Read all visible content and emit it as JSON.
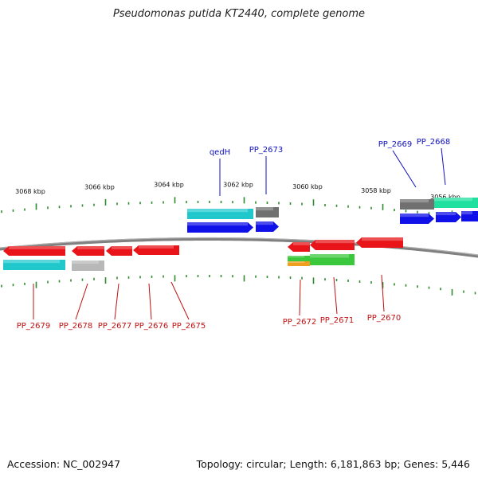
{
  "title": "Pseudomonas putida KT2440, complete genome",
  "accession_text": "Accession: NC_002947",
  "summary_text": "Topology: circular; Length: 6,181,863 bp; Genes: 5,446",
  "colors": {
    "backbone": "#808080",
    "tick": "#2e8b2e",
    "red": "#e8141a",
    "cyan": "#20c8cc",
    "blue": "#1010e8",
    "gray": "#707070",
    "lightgray": "#b8b8b8",
    "green": "#3cc83c",
    "orange": "#f0a020",
    "teal": "#20e0a0",
    "label_blue": "#1010c0",
    "label_red": "#c01010"
  },
  "scale_labels": [
    "3068 kbp",
    "3066 kbp",
    "3064 kbp",
    "3062 kbp",
    "3060 kbp",
    "3058 kbp",
    "3056 kbp"
  ],
  "top_labels": [
    "qedH",
    "PP_2673",
    "PP_2669",
    "PP_2668"
  ],
  "bottom_labels": [
    "PP_2679",
    "PP_2678",
    "PP_2677",
    "PP_2676",
    "PP_2675",
    "PP_2672",
    "PP_2671",
    "PP_2670"
  ]
}
